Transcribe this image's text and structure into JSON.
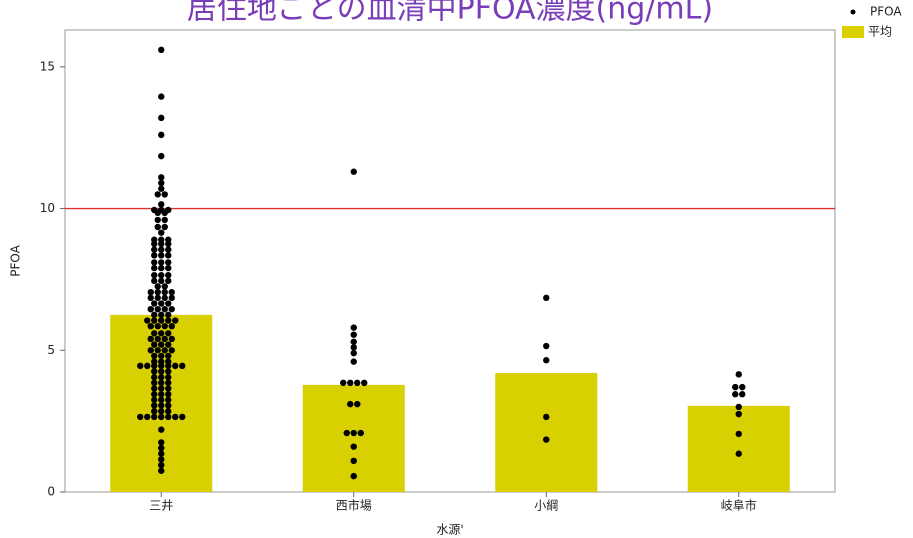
{
  "chart_data": {
    "type": "bar",
    "title": "居住地ごとの血清中PFOA濃度(ng/mL)",
    "x_label": "水源'",
    "y_label": "PFOA",
    "categories": [
      "三井",
      "西市場",
      "小綱",
      "岐阜市"
    ],
    "series": [
      {
        "name": "平均",
        "color": "#d8d000",
        "values": [
          6.25,
          3.78,
          4.2,
          3.04
        ]
      }
    ],
    "points": {
      "name": "PFOA",
      "color": "#000000",
      "values": [
        [
          15.6,
          13.95,
          13.2,
          12.6,
          11.85,
          11.1,
          10.9,
          10.7,
          10.5,
          10.5,
          10.15,
          9.95,
          9.95,
          9.95,
          9.85,
          9.85,
          9.6,
          9.6,
          9.35,
          9.35,
          9.15,
          8.9,
          8.9,
          8.9,
          8.75,
          8.75,
          8.75,
          8.55,
          8.55,
          8.55,
          8.35,
          8.35,
          8.35,
          8.1,
          8.1,
          8.1,
          7.9,
          7.9,
          7.9,
          7.65,
          7.65,
          7.65,
          7.45,
          7.45,
          7.45,
          7.25,
          7.25,
          7.05,
          7.05,
          7.05,
          7.05,
          6.85,
          6.85,
          6.85,
          6.85,
          6.65,
          6.65,
          6.65,
          6.45,
          6.45,
          6.45,
          6.45,
          6.25,
          6.25,
          6.25,
          6.05,
          6.05,
          6.05,
          6.05,
          6.05,
          5.85,
          5.85,
          5.85,
          5.85,
          5.6,
          5.6,
          5.6,
          5.4,
          5.4,
          5.4,
          5.4,
          5.2,
          5.2,
          5.2,
          5.0,
          5.0,
          5.0,
          5.0,
          4.8,
          4.8,
          4.8,
          4.6,
          4.6,
          4.6,
          4.45,
          4.45,
          4.45,
          4.45,
          4.45,
          4.45,
          4.45,
          4.25,
          4.25,
          4.25,
          4.05,
          4.05,
          4.05,
          3.85,
          3.85,
          3.85,
          3.65,
          3.65,
          3.65,
          3.45,
          3.45,
          3.45,
          3.25,
          3.25,
          3.25,
          3.05,
          3.05,
          3.05,
          2.85,
          2.85,
          2.85,
          2.65,
          2.65,
          2.65,
          2.65,
          2.65,
          2.65,
          2.65,
          2.2,
          1.75,
          1.55,
          1.35,
          1.15,
          0.95,
          0.75
        ],
        [
          11.3,
          5.8,
          5.55,
          5.3,
          5.1,
          4.9,
          4.6,
          3.85,
          3.85,
          3.85,
          3.85,
          3.1,
          3.1,
          2.08,
          2.08,
          2.08,
          1.6,
          1.1,
          0.56
        ],
        [
          6.85,
          5.15,
          4.65,
          2.65,
          1.85
        ],
        [
          4.15,
          3.7,
          3.7,
          3.45,
          3.45,
          3.0,
          2.75,
          2.05,
          1.35
        ]
      ]
    },
    "reference_line": {
      "value": 10,
      "color": "#e03030"
    },
    "ylim": [
      0,
      16.3
    ],
    "yticks": [
      0,
      5,
      10,
      15
    ]
  }
}
